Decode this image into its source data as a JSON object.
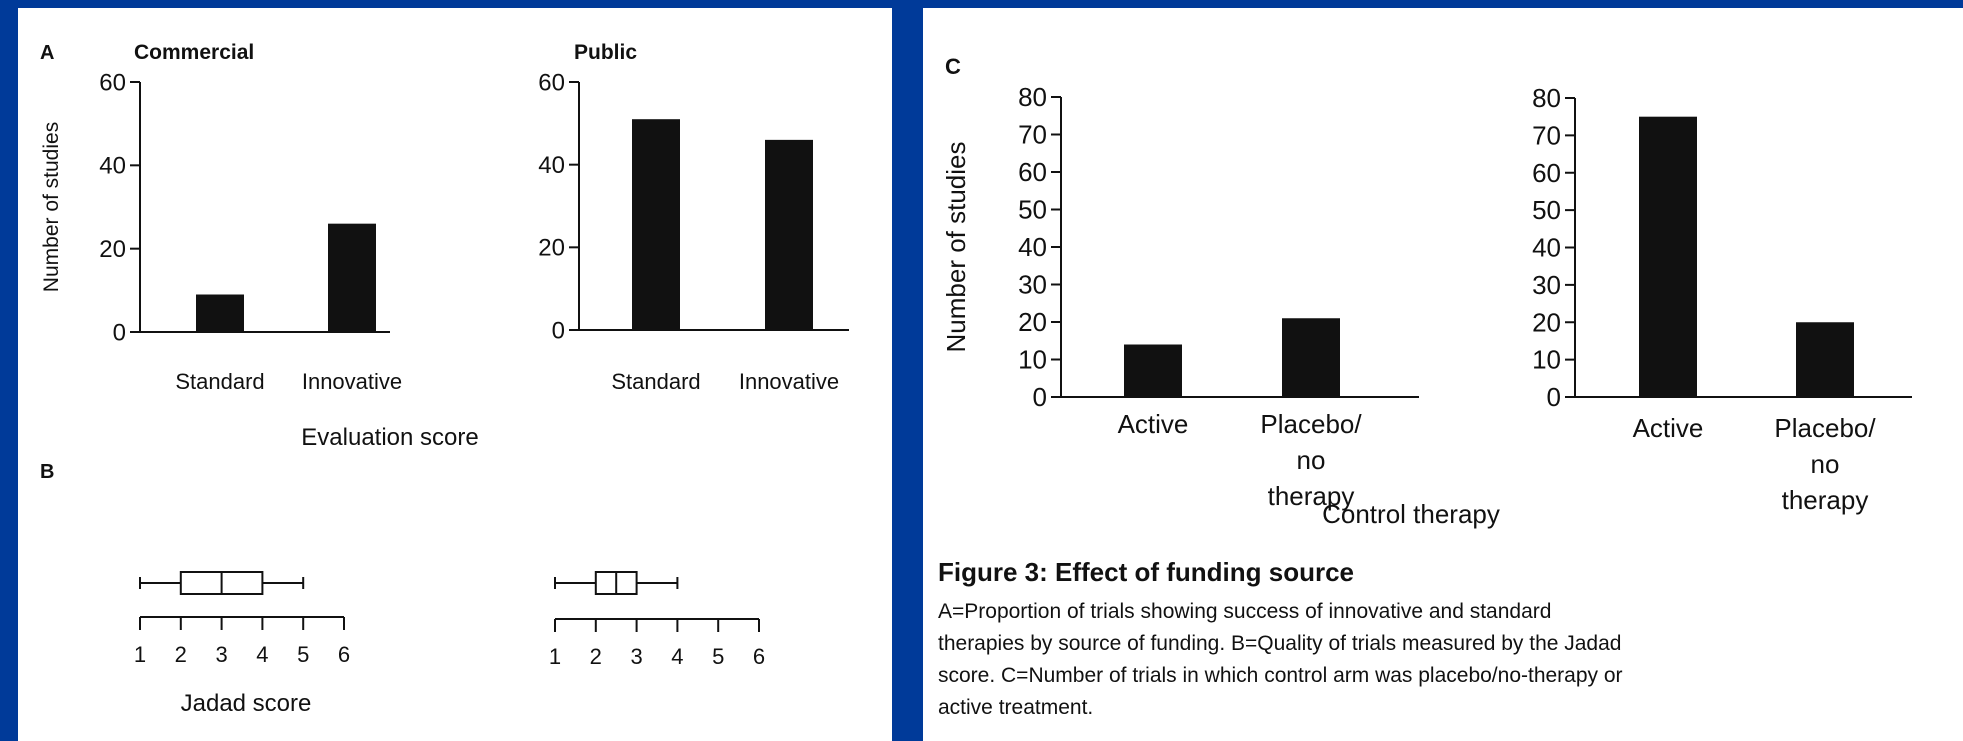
{
  "colors": {
    "background": "#003a99",
    "panel": "#ffffff",
    "ink": "#111111"
  },
  "chart_data": [
    {
      "type": "bar",
      "panel": "A",
      "title": "Commercial",
      "categories": [
        "Standard",
        "Innovative"
      ],
      "values": [
        9,
        26
      ],
      "ylabel": "Number of studies",
      "ylim": [
        0,
        60
      ],
      "yticks": [
        "0",
        "20",
        "40",
        "60"
      ]
    },
    {
      "type": "bar",
      "panel": "",
      "title": "Public",
      "categories": [
        "Standard",
        "Innovative"
      ],
      "values": [
        51,
        46
      ],
      "ylim": [
        0,
        60
      ],
      "yticks": [
        "0",
        "20",
        "40",
        "60"
      ]
    },
    {
      "type": "box",
      "panel": "B",
      "title": "",
      "xlim": [
        1,
        6
      ],
      "xticks": [
        "1",
        "2",
        "3",
        "4",
        "5",
        "6"
      ],
      "box": {
        "min": 1,
        "q1": 2,
        "median": 3,
        "q3": 4,
        "max": 5
      }
    },
    {
      "type": "box",
      "panel": "",
      "title": "",
      "xlim": [
        1,
        6
      ],
      "xticks": [
        "1",
        "2",
        "3",
        "4",
        "5",
        "6"
      ],
      "box": {
        "min": 1,
        "q1": 2,
        "median": 2.5,
        "q3": 3,
        "max": 4
      }
    },
    {
      "type": "bar",
      "panel": "C",
      "title": "",
      "categories": [
        "Active",
        "Placebo/ no therapy"
      ],
      "values": [
        14,
        21
      ],
      "ylabel": "Number of studies",
      "ylim": [
        0,
        80
      ],
      "yticks": [
        "0",
        "10",
        "20",
        "30",
        "40",
        "50",
        "60",
        "70",
        "80"
      ]
    },
    {
      "type": "bar",
      "panel": "",
      "title": "",
      "categories": [
        "Active",
        "Placebo/ no therapy"
      ],
      "values": [
        75,
        20
      ],
      "ylim": [
        0,
        80
      ],
      "yticks": [
        "0",
        "10",
        "20",
        "30",
        "40",
        "50",
        "60",
        "70",
        "80"
      ]
    }
  ],
  "labels": {
    "a_xlabel": "Evaluation score",
    "b_xlabel": "Jadad score",
    "c_xlabel": "Control therapy"
  },
  "caption": {
    "title": "Figure 3: Effect of funding source",
    "lines": [
      "A=Proportion of trials showing success of innovative and standard",
      "therapies by source of funding. B=Quality of trials measured by the Jadad",
      "score. C=Number of trials in which control arm was placebo/no-therapy or",
      "active treatment."
    ]
  }
}
